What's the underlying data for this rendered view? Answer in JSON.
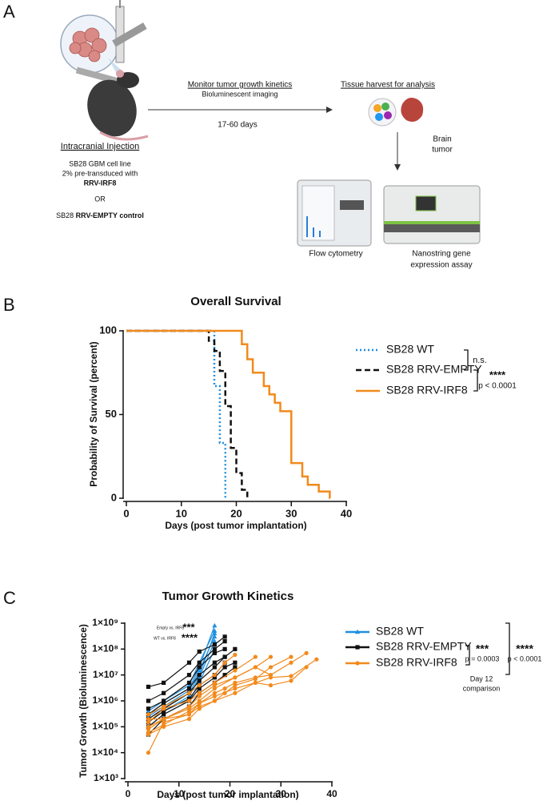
{
  "panel_a": {
    "label": "A",
    "injection_title": "Intracranial Injection",
    "cell_line": "SB28 GBM cell line",
    "transduced": "2% pre-transduced with",
    "irf8": "RRV-IRF8",
    "or": "OR",
    "empty_prefix": "SB28",
    "empty_control": "RRV-EMPTY control",
    "monitor_title": "Monitor tumor growth kinetics",
    "monitor_sub": "Bioluminescent imaging",
    "duration": "17-60 days",
    "harvest_title": "Tissue harvest for analysis",
    "brain_tumor": [
      "Brain",
      "tumor"
    ],
    "flow": "Flow cytometry",
    "nanostring": [
      "Nanostring gene",
      "expression assay"
    ]
  },
  "chart_data": [
    {
      "type": "survival",
      "panel_label": "B",
      "title": "Overall Survival",
      "x_label": "Days (post tumor implantation)",
      "y_label": "Probability of Survival (percent)",
      "xlim": [
        0,
        40
      ],
      "xticks": [
        0,
        10,
        20,
        30,
        40
      ],
      "ylim": [
        0,
        100
      ],
      "yticks": [
        0,
        50,
        100
      ],
      "series": [
        {
          "name": "SB28 WT",
          "color": "#1f8fe0",
          "line_style": "dotted",
          "x": [
            0,
            15,
            16,
            17,
            18
          ],
          "values": [
            100,
            100,
            67,
            33,
            0
          ]
        },
        {
          "name": "SB28 RRV-EMPTY",
          "color": "#111111",
          "line_style": "dashed",
          "x": [
            0,
            15,
            16,
            17,
            18,
            19,
            20,
            21,
            22
          ],
          "values": [
            100,
            94,
            88,
            76,
            55,
            30,
            15,
            5,
            0
          ]
        },
        {
          "name": "SB28 RRV-IRF8",
          "color": "#f28a1c",
          "line_style": "solid",
          "x": [
            0,
            21,
            22,
            23,
            25,
            26,
            27,
            28,
            30,
            32,
            33,
            35,
            37
          ],
          "values": [
            100,
            92,
            83,
            75,
            67,
            62,
            57,
            52,
            21,
            13,
            8,
            4,
            0
          ]
        }
      ],
      "annotations": [
        "n.s.",
        "****",
        "p < 0.0001"
      ]
    },
    {
      "type": "spaghetti",
      "panel_label": "C",
      "title": "Tumor Growth Kinetics",
      "x_label": "Days (post tumor implantation)",
      "y_label": "Tumor Growth (Bioluminescence)",
      "log_scale": true,
      "xlim": [
        0,
        40
      ],
      "xticks": [
        0,
        10,
        20,
        30,
        40
      ],
      "ylim": [
        1000,
        1000000000
      ],
      "yticks": [
        {
          "value": 1000,
          "label": "1×10³"
        },
        {
          "value": 10000,
          "label": "1×10⁴"
        },
        {
          "value": 100000,
          "label": "1×10⁵"
        },
        {
          "value": 1000000,
          "label": "1×10⁶"
        },
        {
          "value": 10000000,
          "label": "1×10⁷"
        },
        {
          "value": 100000000,
          "label": "1×10⁸"
        },
        {
          "value": 1000000000,
          "label": "1×10⁹"
        }
      ],
      "series": [
        {
          "name": "SB28 WT",
          "color": "#1f8fe0",
          "marker": "triangle",
          "lines": [
            {
              "x": [
                4,
                7,
                12,
                14,
                17
              ],
              "values": [
                300000,
                800000,
                3000000,
                20000000,
                800000000
              ]
            },
            {
              "x": [
                4,
                7,
                12,
                14,
                17
              ],
              "values": [
                200000,
                500000,
                2000000,
                10000000,
                400000000
              ]
            },
            {
              "x": [
                4,
                7,
                12,
                14,
                17
              ],
              "values": [
                150000,
                400000,
                1500000,
                8000000,
                200000000
              ]
            },
            {
              "x": [
                4,
                7,
                12,
                14,
                17
              ],
              "values": [
                400000,
                1000000,
                4000000,
                30000000,
                500000000
              ]
            },
            {
              "x": [
                4,
                7,
                12,
                14,
                17
              ],
              "values": [
                100000,
                300000,
                1000000,
                5000000,
                100000000
              ]
            },
            {
              "x": [
                4,
                7,
                12,
                14,
                17
              ],
              "values": [
                250000,
                600000,
                2500000,
                15000000,
                300000000
              ]
            }
          ]
        },
        {
          "name": "SB28 RRV-EMPTY",
          "color": "#111111",
          "marker": "square",
          "lines": [
            {
              "x": [
                4,
                7,
                12,
                14,
                17,
                19
              ],
              "values": [
                3500000,
                5000000,
                30000000,
                80000000,
                150000000,
                300000000
              ]
            },
            {
              "x": [
                4,
                7,
                12,
                14,
                17,
                19
              ],
              "values": [
                1000000,
                2000000,
                10000000,
                30000000,
                100000000,
                200000000
              ]
            },
            {
              "x": [
                4,
                7,
                12,
                14,
                17,
                19
              ],
              "values": [
                500000,
                1000000,
                5000000,
                20000000,
                70000000,
                100000000
              ]
            },
            {
              "x": [
                4,
                7,
                12,
                14,
                17,
                19
              ],
              "values": [
                200000,
                500000,
                2000000,
                6000000,
                20000000,
                50000000
              ]
            },
            {
              "x": [
                4,
                7,
                12,
                14,
                17,
                19,
                21
              ],
              "values": [
                100000,
                300000,
                1000000,
                3000000,
                8000000,
                20000000,
                30000000
              ]
            },
            {
              "x": [
                4,
                7,
                12,
                14,
                17,
                19,
                21
              ],
              "values": [
                50000,
                200000,
                600000,
                2000000,
                5000000,
                10000000,
                20000000
              ]
            },
            {
              "x": [
                4,
                7,
                12,
                14,
                17,
                19
              ],
              "values": [
                150000,
                400000,
                1200000,
                4000000,
                10000000,
                30000000
              ]
            },
            {
              "x": [
                4,
                7,
                12,
                14,
                17,
                19,
                21
              ],
              "values": [
                300000,
                800000,
                3000000,
                10000000,
                30000000,
                50000000,
                100000000
              ]
            }
          ]
        },
        {
          "name": "SB28 RRV-IRF8",
          "color": "#f28a1c",
          "marker": "circle",
          "lines": [
            {
              "x": [
                4,
                7,
                12,
                14,
                17,
                19,
                21,
                25,
                28,
                32,
                35
              ],
              "values": [
                10000,
                150000,
                300000,
                800000,
                2000000,
                3000000,
                5000000,
                8000000,
                10000000,
                30000000,
                70000000
              ]
            },
            {
              "x": [
                4,
                7,
                12,
                14,
                17,
                19,
                21,
                25,
                28,
                32
              ],
              "values": [
                50000,
                100000,
                200000,
                500000,
                1000000,
                2000000,
                4000000,
                7000000,
                20000000,
                50000000
              ]
            },
            {
              "x": [
                4,
                7,
                12,
                14,
                17,
                21,
                25,
                28
              ],
              "values": [
                100000,
                200000,
                500000,
                1000000,
                3000000,
                8000000,
                20000000,
                50000000
              ]
            },
            {
              "x": [
                4,
                7,
                12,
                14,
                17,
                21,
                25,
                28,
                32,
                37
              ],
              "values": [
                200000,
                200000,
                300000,
                600000,
                1000000,
                2000000,
                5000000,
                8000000,
                9000000,
                40000000
              ]
            },
            {
              "x": [
                4,
                7,
                12,
                14,
                17,
                21,
                25
              ],
              "values": [
                150000,
                500000,
                1000000,
                2000000,
                5000000,
                15000000,
                50000000
              ]
            },
            {
              "x": [
                4,
                7,
                12,
                14,
                17,
                21,
                25,
                28,
                32,
                35
              ],
              "values": [
                60000,
                120000,
                400000,
                800000,
                1500000,
                3000000,
                5000000,
                4000000,
                6000000,
                20000000
              ]
            },
            {
              "x": [
                4,
                7,
                12,
                14,
                17,
                19,
                21
              ],
              "values": [
                300000,
                600000,
                2000000,
                4000000,
                10000000,
                30000000,
                60000000
              ]
            },
            {
              "x": [
                4,
                7,
                12,
                14,
                17,
                21,
                25,
                28
              ],
              "values": [
                80000,
                200000,
                600000,
                1500000,
                4000000,
                8000000,
                20000000,
                10000000
              ]
            }
          ]
        }
      ],
      "annotations": [
        "Empty vs. IRF8",
        "***",
        "WT vs. IRF8",
        "****",
        "***",
        "p = 0.0003",
        "****",
        "p < 0.0001",
        "Day 12",
        "comparison"
      ]
    }
  ]
}
